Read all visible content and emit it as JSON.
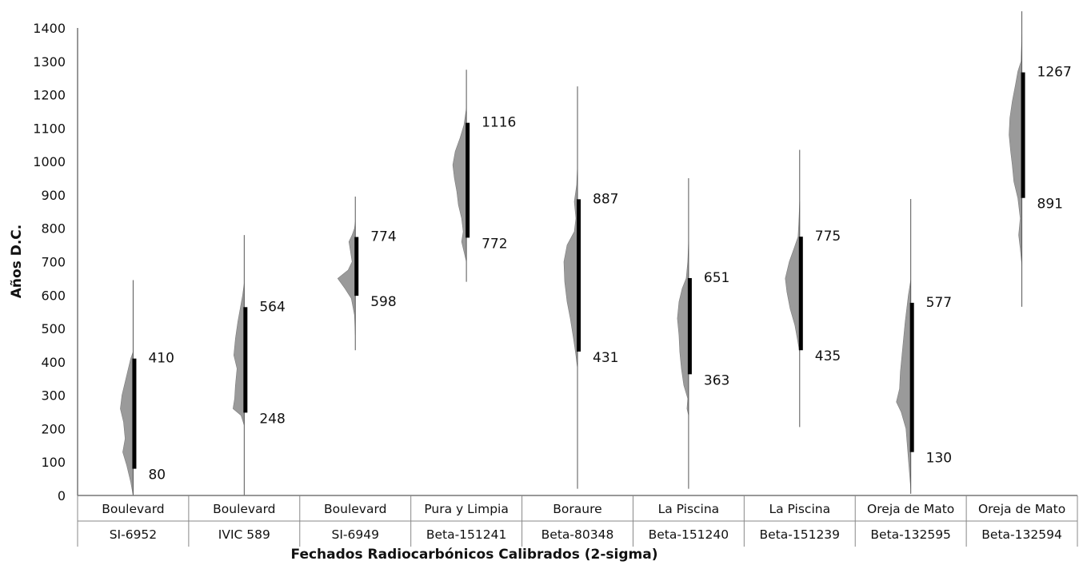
{
  "chart_data": {
    "type": "range",
    "xlabel": "Fechados Radiocarbónicos Calibrados (2-sigma)",
    "ylabel": "Años D.C.",
    "ylim": [
      0,
      1400
    ],
    "yticks": [
      0,
      100,
      200,
      300,
      400,
      500,
      600,
      700,
      800,
      900,
      1000,
      1100,
      1200,
      1300,
      1400
    ],
    "grid": false,
    "colors": {
      "distribution": "#9a9a9a",
      "range_bar": "#000000",
      "whisker": "#555555"
    },
    "categories": [
      {
        "site": "Boulevard",
        "sample": "SI-6952"
      },
      {
        "site": "Boulevard",
        "sample": "IVIC 589"
      },
      {
        "site": "Boulevard",
        "sample": "SI-6949"
      },
      {
        "site": "Pura y Limpia",
        "sample": "Beta-151241"
      },
      {
        "site": "Boraure",
        "sample": "Beta-80348"
      },
      {
        "site": "La Piscina",
        "sample": "Beta-151240"
      },
      {
        "site": "La Piscina",
        "sample": "Beta-151239"
      },
      {
        "site": "Oreja de Mato",
        "sample": "Beta-132595"
      },
      {
        "site": "Oreja de Mato",
        "sample": "Beta-132594"
      }
    ],
    "ranges": [
      {
        "low": 80,
        "high": 410,
        "whisker": [
          0,
          645
        ]
      },
      {
        "low": 248,
        "high": 564,
        "whisker": [
          0,
          780
        ]
      },
      {
        "low": 598,
        "high": 774,
        "whisker": [
          435,
          895
        ]
      },
      {
        "low": 772,
        "high": 1116,
        "whisker": [
          640,
          1275
        ]
      },
      {
        "low": 431,
        "high": 887,
        "whisker": [
          20,
          1225
        ]
      },
      {
        "low": 363,
        "high": 651,
        "whisker": [
          20,
          950
        ]
      },
      {
        "low": 435,
        "high": 775,
        "whisker": [
          205,
          1035
        ]
      },
      {
        "low": 130,
        "high": 577,
        "whisker": [
          5,
          888
        ]
      },
      {
        "low": 891,
        "high": 1267,
        "whisker": [
          565,
          1450
        ]
      }
    ],
    "distributions": [
      [
        [
          0,
          0
        ],
        [
          40,
          3
        ],
        [
          90,
          8
        ],
        [
          130,
          13
        ],
        [
          170,
          10
        ],
        [
          220,
          12
        ],
        [
          260,
          16
        ],
        [
          300,
          14
        ],
        [
          340,
          10
        ],
        [
          380,
          6
        ],
        [
          410,
          3
        ],
        [
          430,
          0
        ]
      ],
      [
        [
          210,
          0
        ],
        [
          240,
          4
        ],
        [
          260,
          14
        ],
        [
          290,
          12
        ],
        [
          330,
          11
        ],
        [
          380,
          9
        ],
        [
          420,
          13
        ],
        [
          470,
          11
        ],
        [
          520,
          8
        ],
        [
          560,
          5
        ],
        [
          600,
          2
        ],
        [
          635,
          0
        ]
      ],
      [
        [
          480,
          0
        ],
        [
          540,
          1
        ],
        [
          590,
          5
        ],
        [
          620,
          13
        ],
        [
          650,
          22
        ],
        [
          675,
          9
        ],
        [
          700,
          4
        ],
        [
          730,
          6
        ],
        [
          760,
          8
        ],
        [
          780,
          4
        ],
        [
          800,
          1
        ],
        [
          820,
          0
        ]
      ],
      [
        [
          700,
          0
        ],
        [
          760,
          6
        ],
        [
          790,
          4
        ],
        [
          830,
          6
        ],
        [
          870,
          10
        ],
        [
          910,
          12
        ],
        [
          950,
          15
        ],
        [
          990,
          17
        ],
        [
          1030,
          14
        ],
        [
          1070,
          8
        ],
        [
          1110,
          3
        ],
        [
          1160,
          0
        ]
      ],
      [
        [
          380,
          0
        ],
        [
          420,
          2
        ],
        [
          470,
          5
        ],
        [
          530,
          9
        ],
        [
          580,
          13
        ],
        [
          640,
          16
        ],
        [
          700,
          17
        ],
        [
          750,
          13
        ],
        [
          790,
          4
        ],
        [
          830,
          2
        ],
        [
          880,
          4
        ],
        [
          930,
          1
        ],
        [
          990,
          0
        ]
      ],
      [
        [
          240,
          0
        ],
        [
          260,
          2
        ],
        [
          290,
          1
        ],
        [
          330,
          6
        ],
        [
          380,
          9
        ],
        [
          430,
          11
        ],
        [
          480,
          12
        ],
        [
          530,
          14
        ],
        [
          580,
          12
        ],
        [
          620,
          8
        ],
        [
          650,
          3
        ],
        [
          700,
          1
        ],
        [
          760,
          0
        ]
      ],
      [
        [
          430,
          0
        ],
        [
          470,
          3
        ],
        [
          510,
          6
        ],
        [
          560,
          12
        ],
        [
          610,
          16
        ],
        [
          650,
          18
        ],
        [
          700,
          13
        ],
        [
          740,
          7
        ],
        [
          775,
          2
        ],
        [
          820,
          1
        ],
        [
          880,
          0
        ]
      ],
      [
        [
          20,
          0
        ],
        [
          80,
          2
        ],
        [
          140,
          4
        ],
        [
          200,
          6
        ],
        [
          250,
          12
        ],
        [
          280,
          18
        ],
        [
          320,
          14
        ],
        [
          370,
          13
        ],
        [
          420,
          11
        ],
        [
          470,
          9
        ],
        [
          520,
          7
        ],
        [
          560,
          5
        ],
        [
          600,
          3
        ],
        [
          645,
          0
        ]
      ],
      [
        [
          690,
          0
        ],
        [
          740,
          2
        ],
        [
          780,
          4
        ],
        [
          830,
          2
        ],
        [
          890,
          5
        ],
        [
          940,
          10
        ],
        [
          990,
          12
        ],
        [
          1030,
          14
        ],
        [
          1080,
          16
        ],
        [
          1130,
          15
        ],
        [
          1180,
          12
        ],
        [
          1230,
          8
        ],
        [
          1270,
          5
        ],
        [
          1300,
          1
        ],
        [
          1380,
          0
        ]
      ]
    ]
  }
}
